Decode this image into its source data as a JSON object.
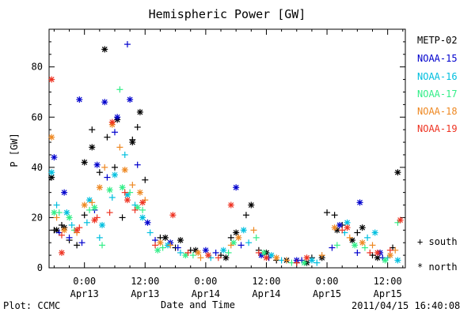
{
  "chart_data": {
    "type": "scatter",
    "title": "Hemispheric Power [GW]",
    "xlabel": "Date and Time",
    "ylabel": "P [GW]",
    "ylim": [
      0,
      95
    ],
    "xlim": [
      "2011-04-12 17:00",
      "2011-04-15 15:30"
    ],
    "yticks": [
      0,
      20,
      40,
      60,
      80
    ],
    "xticks": [
      {
        "x": "2011-04-13 00:00",
        "time": "0:00",
        "date": "Apr13"
      },
      {
        "x": "2011-04-13 12:00",
        "time": "12:00",
        "date": "Apr13"
      },
      {
        "x": "2011-04-14 00:00",
        "time": "0:00",
        "date": "Apr14"
      },
      {
        "x": "2011-04-14 12:00",
        "time": "12:00",
        "date": "Apr14"
      },
      {
        "x": "2011-04-15 00:00",
        "time": "0:00",
        "date": "Apr15"
      },
      {
        "x": "2011-04-15 12:00",
        "time": "12:00",
        "date": "Apr15"
      }
    ],
    "marker_legend": [
      {
        "symbol": "+",
        "label": "south"
      },
      {
        "symbol": "*",
        "label": "north"
      }
    ],
    "legend_placement": "right",
    "series": [
      {
        "name": "METP-02",
        "color": "#000000",
        "south": [
          [
            "2011-04-12 18:00",
            15
          ],
          [
            "2011-04-12 19:30",
            17
          ],
          [
            "2011-04-12 21:00",
            11
          ],
          [
            "2011-04-12 22:30",
            9
          ],
          [
            "2011-04-13 00:00",
            21
          ],
          [
            "2011-04-13 01:30",
            55
          ],
          [
            "2011-04-13 03:00",
            38
          ],
          [
            "2011-04-13 04:30",
            52
          ],
          [
            "2011-04-13 06:00",
            40
          ],
          [
            "2011-04-13 07:30",
            20
          ],
          [
            "2011-04-13 09:30",
            51
          ],
          [
            "2011-04-13 10:30",
            56
          ],
          [
            "2011-04-13 12:00",
            35
          ],
          [
            "2011-04-13 15:00",
            12
          ],
          [
            "2011-04-13 18:00",
            8
          ],
          [
            "2011-04-13 21:00",
            7
          ],
          [
            "2011-04-14 03:00",
            5
          ],
          [
            "2011-04-14 05:00",
            12
          ],
          [
            "2011-04-14 08:00",
            21
          ],
          [
            "2011-04-14 10:30",
            7
          ],
          [
            "2011-04-14 14:00",
            3
          ],
          [
            "2011-04-14 18:00",
            2
          ],
          [
            "2011-04-14 21:00",
            4
          ],
          [
            "2011-04-15 00:00",
            22
          ],
          [
            "2011-04-15 01:30",
            21
          ],
          [
            "2011-04-15 03:00",
            17
          ],
          [
            "2011-04-15 06:00",
            14
          ],
          [
            "2011-04-15 09:00",
            5
          ],
          [
            "2011-04-15 13:00",
            8
          ]
        ],
        "north": [
          [
            "2011-04-12 17:30",
            36
          ],
          [
            "2011-04-12 18:30",
            15
          ],
          [
            "2011-04-12 20:00",
            16
          ],
          [
            "2011-04-13 00:00",
            42
          ],
          [
            "2011-04-13 01:30",
            48
          ],
          [
            "2011-04-13 04:00",
            87
          ],
          [
            "2011-04-13 06:30",
            59
          ],
          [
            "2011-04-13 09:30",
            50
          ],
          [
            "2011-04-13 11:00",
            62
          ],
          [
            "2011-04-13 16:00",
            12
          ],
          [
            "2011-04-13 19:00",
            11
          ],
          [
            "2011-04-13 22:00",
            7
          ],
          [
            "2011-04-14 04:00",
            4
          ],
          [
            "2011-04-14 06:00",
            14
          ],
          [
            "2011-04-14 09:00",
            25
          ],
          [
            "2011-04-14 12:00",
            6
          ],
          [
            "2011-04-14 16:00",
            3
          ],
          [
            "2011-04-14 20:00",
            2
          ],
          [
            "2011-04-14 23:00",
            4
          ],
          [
            "2011-04-15 02:00",
            15
          ],
          [
            "2011-04-15 05:00",
            11
          ],
          [
            "2011-04-15 07:00",
            16
          ],
          [
            "2011-04-15 10:00",
            4
          ],
          [
            "2011-04-15 14:00",
            38
          ]
        ]
      },
      {
        "name": "NOAA-15",
        "color": "#0000cd",
        "south": [
          [
            "2011-04-12 19:00",
            14
          ],
          [
            "2011-04-12 21:00",
            12
          ],
          [
            "2011-04-12 23:30",
            10
          ],
          [
            "2011-04-13 02:00",
            23
          ],
          [
            "2011-04-13 04:30",
            36
          ],
          [
            "2011-04-13 06:00",
            54
          ],
          [
            "2011-04-13 08:30",
            89
          ],
          [
            "2011-04-13 10:30",
            41
          ],
          [
            "2011-04-13 14:00",
            11
          ],
          [
            "2011-04-13 18:30",
            8
          ],
          [
            "2011-04-14 02:00",
            6
          ],
          [
            "2011-04-14 07:00",
            9
          ],
          [
            "2011-04-14 12:30",
            4
          ],
          [
            "2011-04-14 19:00",
            3
          ],
          [
            "2011-04-15 01:00",
            8
          ],
          [
            "2011-04-15 06:00",
            6
          ],
          [
            "2011-04-15 11:00",
            4
          ]
        ],
        "north": [
          [
            "2011-04-12 18:00",
            44
          ],
          [
            "2011-04-12 20:00",
            30
          ],
          [
            "2011-04-12 23:00",
            67
          ],
          [
            "2011-04-13 02:30",
            41
          ],
          [
            "2011-04-13 04:00",
            66
          ],
          [
            "2011-04-13 06:30",
            60
          ],
          [
            "2011-04-13 09:00",
            67
          ],
          [
            "2011-04-13 12:30",
            18
          ],
          [
            "2011-04-13 17:00",
            10
          ],
          [
            "2011-04-14 00:00",
            7
          ],
          [
            "2011-04-14 06:00",
            32
          ],
          [
            "2011-04-14 11:00",
            5
          ],
          [
            "2011-04-14 18:00",
            3
          ],
          [
            "2011-04-15 02:30",
            17
          ],
          [
            "2011-04-15 06:30",
            26
          ],
          [
            "2011-04-15 10:30",
            6
          ]
        ]
      },
      {
        "name": "NOAA-16",
        "color": "#00bfdf",
        "south": [
          [
            "2011-04-12 18:30",
            25
          ],
          [
            "2011-04-12 21:30",
            17
          ],
          [
            "2011-04-13 00:30",
            18
          ],
          [
            "2011-04-13 03:00",
            12
          ],
          [
            "2011-04-13 05:30",
            28
          ],
          [
            "2011-04-13 08:00",
            45
          ],
          [
            "2011-04-13 10:00",
            25
          ],
          [
            "2011-04-13 13:00",
            14
          ],
          [
            "2011-04-13 19:00",
            6
          ],
          [
            "2011-04-14 01:00",
            4
          ],
          [
            "2011-04-14 08:30",
            10
          ],
          [
            "2011-04-14 15:00",
            3
          ],
          [
            "2011-04-14 22:00",
            2
          ],
          [
            "2011-04-15 03:30",
            14
          ],
          [
            "2011-04-15 08:00",
            12
          ],
          [
            "2011-04-15 12:00",
            4
          ]
        ],
        "north": [
          [
            "2011-04-12 17:30",
            38
          ],
          [
            "2011-04-12 20:30",
            22
          ],
          [
            "2011-04-13 01:00",
            27
          ],
          [
            "2011-04-13 03:30",
            17
          ],
          [
            "2011-04-13 06:00",
            37
          ],
          [
            "2011-04-13 08:30",
            29
          ],
          [
            "2011-04-13 11:30",
            20
          ],
          [
            "2011-04-13 16:30",
            9
          ],
          [
            "2011-04-14 03:30",
            7
          ],
          [
            "2011-04-14 07:30",
            15
          ],
          [
            "2011-04-14 13:00",
            5
          ],
          [
            "2011-04-14 21:00",
            3
          ],
          [
            "2011-04-15 04:00",
            18
          ],
          [
            "2011-04-15 09:30",
            14
          ],
          [
            "2011-04-15 14:00",
            3
          ]
        ]
      },
      {
        "name": "NOAA-17",
        "color": "#33ee88",
        "south": [
          [
            "2011-04-12 19:00",
            22
          ],
          [
            "2011-04-12 22:00",
            15
          ],
          [
            "2011-04-13 01:00",
            23
          ],
          [
            "2011-04-13 03:30",
            9
          ],
          [
            "2011-04-13 07:00",
            71
          ],
          [
            "2011-04-13 09:00",
            30
          ],
          [
            "2011-04-13 11:30",
            23
          ],
          [
            "2011-04-13 15:30",
            8
          ],
          [
            "2011-04-13 21:30",
            5
          ],
          [
            "2011-04-14 04:30",
            6
          ],
          [
            "2011-04-14 10:00",
            12
          ],
          [
            "2011-04-14 17:00",
            2
          ],
          [
            "2011-04-15 02:00",
            9
          ],
          [
            "2011-04-15 07:30",
            8
          ],
          [
            "2011-04-15 14:00",
            18
          ]
        ],
        "north": [
          [
            "2011-04-12 18:00",
            22
          ],
          [
            "2011-04-12 21:00",
            20
          ],
          [
            "2011-04-13 02:00",
            24
          ],
          [
            "2011-04-13 05:00",
            31
          ],
          [
            "2011-04-13 07:30",
            32
          ],
          [
            "2011-04-13 10:30",
            24
          ],
          [
            "2011-04-13 14:30",
            7
          ],
          [
            "2011-04-13 20:00",
            5
          ],
          [
            "2011-04-14 05:30",
            10
          ],
          [
            "2011-04-14 11:30",
            6
          ],
          [
            "2011-04-14 19:30",
            2
          ],
          [
            "2011-04-15 05:30",
            9
          ],
          [
            "2011-04-15 11:30",
            3
          ]
        ]
      },
      {
        "name": "NOAA-18",
        "color": "#ee8822",
        "south": [
          [
            "2011-04-12 18:30",
            20
          ],
          [
            "2011-04-12 22:30",
            14
          ],
          [
            "2011-04-13 01:30",
            26
          ],
          [
            "2011-04-13 04:00",
            40
          ],
          [
            "2011-04-13 07:00",
            48
          ],
          [
            "2011-04-13 09:30",
            33
          ],
          [
            "2011-04-13 12:00",
            27
          ],
          [
            "2011-04-13 17:00",
            9
          ],
          [
            "2011-04-13 23:00",
            4
          ],
          [
            "2011-04-14 05:00",
            9
          ],
          [
            "2011-04-14 09:30",
            15
          ],
          [
            "2011-04-14 16:00",
            3
          ],
          [
            "2011-04-14 23:00",
            5
          ],
          [
            "2011-04-15 04:30",
            12
          ],
          [
            "2011-04-15 09:00",
            9
          ],
          [
            "2011-04-15 13:30",
            7
          ]
        ],
        "north": [
          [
            "2011-04-12 17:30",
            52
          ],
          [
            "2011-04-12 20:00",
            15
          ],
          [
            "2011-04-13 00:00",
            25
          ],
          [
            "2011-04-13 03:00",
            32
          ],
          [
            "2011-04-13 05:30",
            57
          ],
          [
            "2011-04-13 08:00",
            39
          ],
          [
            "2011-04-13 11:00",
            30
          ],
          [
            "2011-04-13 15:00",
            10
          ],
          [
            "2011-04-13 22:30",
            6
          ],
          [
            "2011-04-14 06:30",
            12
          ],
          [
            "2011-04-14 14:00",
            4
          ],
          [
            "2011-04-15 01:30",
            16
          ],
          [
            "2011-04-15 07:00",
            10
          ],
          [
            "2011-04-15 12:30",
            5
          ]
        ]
      },
      {
        "name": "NOAA-19",
        "color": "#ee3322",
        "south": [
          [
            "2011-04-12 19:30",
            13
          ],
          [
            "2011-04-12 23:00",
            16
          ],
          [
            "2011-04-13 02:30",
            20
          ],
          [
            "2011-04-13 05:00",
            22
          ],
          [
            "2011-04-13 08:00",
            30
          ],
          [
            "2011-04-13 10:00",
            23
          ],
          [
            "2011-04-13 14:00",
            9
          ],
          [
            "2011-04-13 20:30",
            6
          ],
          [
            "2011-04-14 02:30",
            4
          ],
          [
            "2011-04-14 10:30",
            6
          ],
          [
            "2011-04-14 18:00",
            2
          ],
          [
            "2011-04-15 03:00",
            15
          ],
          [
            "2011-04-15 08:30",
            6
          ],
          [
            "2011-04-15 12:30",
            7
          ]
        ],
        "north": [
          [
            "2011-04-12 17:30",
            75
          ],
          [
            "2011-04-12 19:30",
            6
          ],
          [
            "2011-04-12 22:30",
            15
          ],
          [
            "2011-04-13 02:00",
            19
          ],
          [
            "2011-04-13 05:30",
            58
          ],
          [
            "2011-04-13 08:30",
            27
          ],
          [
            "2011-04-13 11:30",
            26
          ],
          [
            "2011-04-13 17:30",
            21
          ],
          [
            "2011-04-14 00:30",
            5
          ],
          [
            "2011-04-14 05:00",
            25
          ],
          [
            "2011-04-14 12:00",
            4
          ],
          [
            "2011-04-14 20:00",
            4
          ],
          [
            "2011-04-15 04:00",
            16
          ],
          [
            "2011-04-15 10:00",
            6
          ],
          [
            "2011-04-15 14:30",
            19
          ]
        ]
      }
    ]
  },
  "footer": {
    "left": "Plot: CCMC",
    "right": "2011/04/15 16:40:08"
  }
}
